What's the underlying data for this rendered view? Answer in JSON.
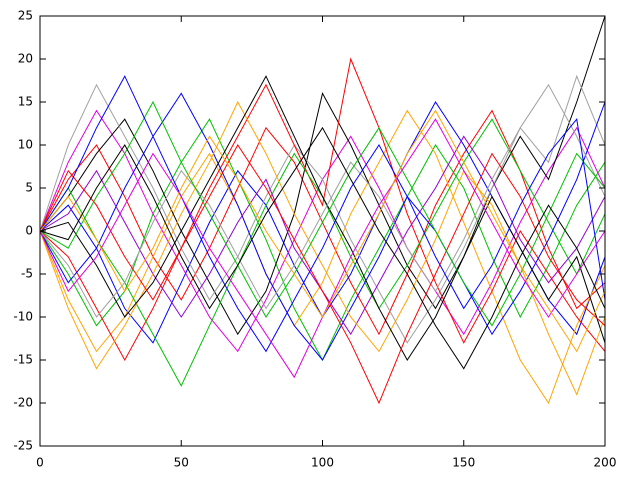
{
  "chart_data": {
    "type": "line",
    "x": [
      0,
      10,
      20,
      30,
      40,
      50,
      60,
      70,
      80,
      90,
      100,
      110,
      120,
      130,
      140,
      150,
      160,
      170,
      180,
      190,
      200
    ],
    "xlim": [
      0,
      200
    ],
    "xticks": [
      0,
      50,
      100,
      150,
      200
    ],
    "ylim": [
      -25,
      25
    ],
    "yticks": [
      -25,
      -20,
      -15,
      -10,
      -5,
      0,
      5,
      10,
      15,
      20,
      25
    ],
    "series": [
      {
        "color": "#ff0000",
        "values": [
          0,
          6,
          10,
          4,
          -3,
          -8,
          -2,
          5,
          12,
          8,
          1,
          -6,
          -12,
          -5,
          3,
          9,
          14,
          7,
          -2,
          -9,
          -6
        ]
      },
      {
        "color": "#00c000",
        "values": [
          0,
          -5,
          -11,
          -7,
          2,
          8,
          13,
          6,
          -1,
          -9,
          -15,
          -8,
          -2,
          4,
          10,
          5,
          -3,
          -10,
          -4,
          3,
          8
        ]
      },
      {
        "color": "#0000ff",
        "values": [
          0,
          3,
          -2,
          -9,
          -13,
          -6,
          1,
          7,
          3,
          -4,
          -10,
          -5,
          2,
          9,
          15,
          10,
          4,
          -2,
          -8,
          -12,
          -3
        ]
      },
      {
        "color": "#e000e0",
        "values": [
          0,
          8,
          14,
          9,
          2,
          -4,
          -10,
          -14,
          -8,
          -1,
          6,
          11,
          5,
          -2,
          -7,
          -12,
          -6,
          1,
          7,
          12,
          5
        ]
      },
      {
        "color": "#ffa500",
        "values": [
          0,
          -8,
          -14,
          -10,
          -3,
          4,
          9,
          3,
          -5,
          -11,
          -6,
          2,
          8,
          14,
          9,
          1,
          -7,
          -15,
          -20,
          -11,
          -4
        ]
      },
      {
        "color": "#000000",
        "values": [
          0,
          4,
          9,
          13,
          7,
          0,
          -6,
          -12,
          -7,
          2,
          16,
          10,
          3,
          -4,
          -9,
          -3,
          5,
          11,
          6,
          15,
          25
        ]
      },
      {
        "color": "#a0a0a0",
        "values": [
          0,
          10,
          17,
          11,
          5,
          -2,
          -8,
          -3,
          4,
          10,
          6,
          -1,
          -7,
          -13,
          -8,
          -2,
          5,
          12,
          8,
          18,
          10
        ]
      },
      {
        "color": "#ff0000",
        "values": [
          0,
          -3,
          -9,
          -15,
          -9,
          -2,
          5,
          11,
          17,
          10,
          3,
          20,
          12,
          2,
          -6,
          -13,
          -7,
          0,
          -5,
          -10,
          -14
        ]
      },
      {
        "color": "#00c000",
        "values": [
          0,
          5,
          -1,
          -6,
          -12,
          -18,
          -11,
          -4,
          3,
          9,
          4,
          -3,
          -9,
          -4,
          2,
          8,
          13,
          7,
          1,
          -5,
          2
        ]
      },
      {
        "color": "#0000ff",
        "values": [
          0,
          -6,
          -2,
          5,
          11,
          16,
          10,
          3,
          -5,
          -11,
          -15,
          -9,
          -3,
          4,
          0,
          -6,
          -12,
          -7,
          -1,
          6,
          15
        ]
      },
      {
        "color": "#9400d3",
        "values": [
          0,
          2,
          7,
          1,
          -5,
          -10,
          -5,
          1,
          6,
          -2,
          -7,
          -12,
          -6,
          0,
          5,
          11,
          6,
          -1,
          -6,
          -2,
          4
        ]
      },
      {
        "color": "#ffa500",
        "values": [
          0,
          -9,
          -16,
          -11,
          -5,
          2,
          8,
          15,
          9,
          2,
          -4,
          -10,
          -14,
          -8,
          -1,
          7,
          3,
          -4,
          -12,
          -19,
          -10
        ]
      },
      {
        "color": "#000000",
        "values": [
          0,
          1,
          -4,
          -10,
          -6,
          0,
          6,
          12,
          18,
          11,
          4,
          -2,
          -9,
          -15,
          -10,
          -3,
          4,
          -2,
          -8,
          -3,
          -13
        ]
      },
      {
        "color": "#a0a0a0",
        "values": [
          0,
          -4,
          -10,
          -6,
          1,
          7,
          3,
          -3,
          -9,
          -4,
          2,
          8,
          4,
          -2,
          -7,
          -1,
          6,
          12,
          17,
          11,
          4
        ]
      },
      {
        "color": "#ff0000",
        "values": [
          0,
          7,
          3,
          -3,
          -8,
          -2,
          4,
          10,
          5,
          -1,
          -7,
          -13,
          -20,
          -12,
          -5,
          2,
          9,
          4,
          -3,
          -8,
          -11
        ]
      },
      {
        "color": "#00c000",
        "values": [
          0,
          -2,
          4,
          9,
          15,
          8,
          2,
          -4,
          -10,
          -5,
          1,
          7,
          12,
          6,
          0,
          -6,
          -11,
          -5,
          2,
          9,
          5
        ]
      },
      {
        "color": "#0000ff",
        "values": [
          0,
          5,
          12,
          18,
          11,
          4,
          -3,
          -9,
          -14,
          -8,
          -2,
          5,
          10,
          4,
          -3,
          -9,
          -4,
          3,
          9,
          13,
          -8
        ]
      },
      {
        "color": "#e000e0",
        "values": [
          0,
          -7,
          -3,
          3,
          9,
          4,
          -2,
          -7,
          -12,
          -17,
          -10,
          -3,
          3,
          8,
          13,
          7,
          1,
          -5,
          -10,
          -5,
          0
        ]
      },
      {
        "color": "#ffa500",
        "values": [
          0,
          4,
          -1,
          -7,
          -2,
          5,
          11,
          6,
          0,
          -5,
          -10,
          -4,
          2,
          9,
          14,
          8,
          2,
          -4,
          -9,
          -14,
          -7
        ]
      },
      {
        "color": "#000000",
        "values": [
          0,
          -1,
          5,
          10,
          4,
          -3,
          -9,
          -4,
          2,
          7,
          12,
          6,
          0,
          -5,
          -11,
          -16,
          -10,
          -3,
          3,
          -2,
          -9
        ]
      }
    ]
  }
}
